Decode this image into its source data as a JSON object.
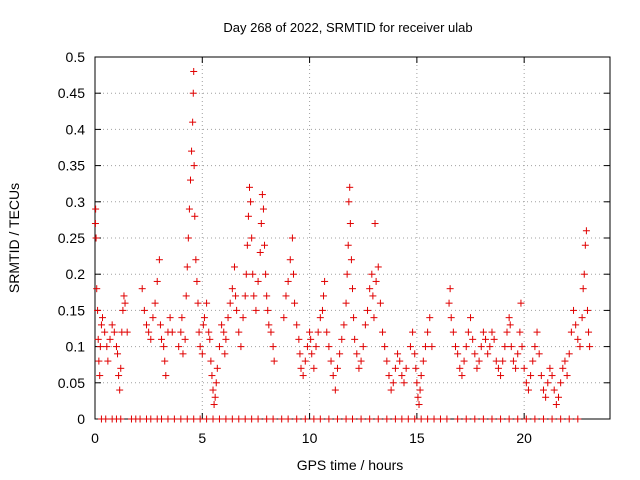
{
  "chart_data": {
    "type": "scatter",
    "title": "Day 268 of 2022, SRMTID for receiver ulab",
    "xlabel": "GPS time / hours",
    "ylabel": "SRMTID / TECUs",
    "xlim": [
      0,
      24
    ],
    "ylim": [
      0,
      0.5
    ],
    "xticks": [
      {
        "value": 0,
        "label": "0"
      },
      {
        "value": 5,
        "label": "5"
      },
      {
        "value": 10,
        "label": "10"
      },
      {
        "value": 15,
        "label": "15"
      },
      {
        "value": 20,
        "label": "20"
      }
    ],
    "yticks": [
      {
        "value": 0,
        "label": "0"
      },
      {
        "value": 0.05,
        "label": "0.05"
      },
      {
        "value": 0.1,
        "label": "0.1"
      },
      {
        "value": 0.15,
        "label": "0.15"
      },
      {
        "value": 0.2,
        "label": "0.2"
      },
      {
        "value": 0.25,
        "label": "0.25"
      },
      {
        "value": 0.3,
        "label": "0.3"
      },
      {
        "value": 0.35,
        "label": "0.35"
      },
      {
        "value": 0.4,
        "label": "0.4"
      },
      {
        "value": 0.45,
        "label": "0.45"
      },
      {
        "value": 0.5,
        "label": "0.5"
      }
    ],
    "grid": true,
    "marker": "+",
    "color": "#e00000",
    "series": [
      {
        "name": "SRMTID",
        "points": [
          [
            0.02,
            0.27
          ],
          [
            0.03,
            0.29
          ],
          [
            0.05,
            0.25
          ],
          [
            0.08,
            0.18
          ],
          [
            0.12,
            0.15
          ],
          [
            0.15,
            0.11
          ],
          [
            0.18,
            0.08
          ],
          [
            0.22,
            0.06
          ],
          [
            0.25,
            0.1
          ],
          [
            0.3,
            0.13
          ],
          [
            0.35,
            0.14
          ],
          [
            0.45,
            0.12
          ],
          [
            0.55,
            0.1
          ],
          [
            0.6,
            0.08
          ],
          [
            0.7,
            0.11
          ],
          [
            0.8,
            0.13
          ],
          [
            0.9,
            0.12
          ],
          [
            1.0,
            0.1
          ],
          [
            1.05,
            0.09
          ],
          [
            1.1,
            0.06
          ],
          [
            1.15,
            0.04
          ],
          [
            1.2,
            0.07
          ],
          [
            1.25,
            0.12
          ],
          [
            1.3,
            0.15
          ],
          [
            1.35,
            0.17
          ],
          [
            1.4,
            0.16
          ],
          [
            1.5,
            0.12
          ],
          [
            2.2,
            0.18
          ],
          [
            2.3,
            0.15
          ],
          [
            2.4,
            0.13
          ],
          [
            2.5,
            0.12
          ],
          [
            2.6,
            0.11
          ],
          [
            2.7,
            0.14
          ],
          [
            2.8,
            0.16
          ],
          [
            2.9,
            0.19
          ],
          [
            3.0,
            0.22
          ],
          [
            3.05,
            0.13
          ],
          [
            3.1,
            0.11
          ],
          [
            3.2,
            0.1
          ],
          [
            3.25,
            0.08
          ],
          [
            3.3,
            0.06
          ],
          [
            3.4,
            0.12
          ],
          [
            3.5,
            0.14
          ],
          [
            3.6,
            0.12
          ],
          [
            3.9,
            0.1
          ],
          [
            4.0,
            0.12
          ],
          [
            4.05,
            0.14
          ],
          [
            4.1,
            0.09
          ],
          [
            4.2,
            0.11
          ],
          [
            4.25,
            0.17
          ],
          [
            4.3,
            0.21
          ],
          [
            4.35,
            0.25
          ],
          [
            4.4,
            0.29
          ],
          [
            4.45,
            0.33
          ],
          [
            4.5,
            0.37
          ],
          [
            4.55,
            0.41
          ],
          [
            4.58,
            0.45
          ],
          [
            4.6,
            0.48
          ],
          [
            4.62,
            0.35
          ],
          [
            4.65,
            0.28
          ],
          [
            4.7,
            0.22
          ],
          [
            4.75,
            0.19
          ],
          [
            4.8,
            0.16
          ],
          [
            4.85,
            0.12
          ],
          [
            4.9,
            0.1
          ],
          [
            5.0,
            0.09
          ],
          [
            5.05,
            0.13
          ],
          [
            5.1,
            0.14
          ],
          [
            5.2,
            0.16
          ],
          [
            5.3,
            0.12
          ],
          [
            5.35,
            0.11
          ],
          [
            5.4,
            0.08
          ],
          [
            5.45,
            0.06
          ],
          [
            5.5,
            0.04
          ],
          [
            5.55,
            0.02
          ],
          [
            5.6,
            0.03
          ],
          [
            5.65,
            0.05
          ],
          [
            5.7,
            0.07
          ],
          [
            5.8,
            0.1
          ],
          [
            5.9,
            0.13
          ],
          [
            6.0,
            0.12
          ],
          [
            6.05,
            0.09
          ],
          [
            6.1,
            0.11
          ],
          [
            6.2,
            0.14
          ],
          [
            6.3,
            0.16
          ],
          [
            6.4,
            0.18
          ],
          [
            6.5,
            0.21
          ],
          [
            6.55,
            0.17
          ],
          [
            6.6,
            0.15
          ],
          [
            6.7,
            0.12
          ],
          [
            6.8,
            0.1
          ],
          [
            6.9,
            0.14
          ],
          [
            7.0,
            0.17
          ],
          [
            7.05,
            0.2
          ],
          [
            7.1,
            0.24
          ],
          [
            7.15,
            0.28
          ],
          [
            7.2,
            0.32
          ],
          [
            7.25,
            0.3
          ],
          [
            7.3,
            0.25
          ],
          [
            7.35,
            0.2
          ],
          [
            7.4,
            0.17
          ],
          [
            7.5,
            0.15
          ],
          [
            7.6,
            0.19
          ],
          [
            7.7,
            0.23
          ],
          [
            7.75,
            0.27
          ],
          [
            7.8,
            0.31
          ],
          [
            7.85,
            0.29
          ],
          [
            7.9,
            0.24
          ],
          [
            7.95,
            0.2
          ],
          [
            8.0,
            0.17
          ],
          [
            8.05,
            0.15
          ],
          [
            8.1,
            0.13
          ],
          [
            8.2,
            0.12
          ],
          [
            8.3,
            0.1
          ],
          [
            8.35,
            0.08
          ],
          [
            8.8,
            0.14
          ],
          [
            8.9,
            0.17
          ],
          [
            9.0,
            0.19
          ],
          [
            9.1,
            0.22
          ],
          [
            9.2,
            0.25
          ],
          [
            9.25,
            0.2
          ],
          [
            9.3,
            0.16
          ],
          [
            9.4,
            0.13
          ],
          [
            9.5,
            0.11
          ],
          [
            9.55,
            0.09
          ],
          [
            9.6,
            0.07
          ],
          [
            9.7,
            0.06
          ],
          [
            9.8,
            0.08
          ],
          [
            9.9,
            0.1
          ],
          [
            10.0,
            0.12
          ],
          [
            10.05,
            0.11
          ],
          [
            10.1,
            0.09
          ],
          [
            10.2,
            0.07
          ],
          [
            10.3,
            0.1
          ],
          [
            10.4,
            0.12
          ],
          [
            10.5,
            0.14
          ],
          [
            10.6,
            0.15
          ],
          [
            10.65,
            0.17
          ],
          [
            10.7,
            0.19
          ],
          [
            10.8,
            0.12
          ],
          [
            10.9,
            0.1
          ],
          [
            11.0,
            0.08
          ],
          [
            11.1,
            0.06
          ],
          [
            11.2,
            0.04
          ],
          [
            11.3,
            0.07
          ],
          [
            11.4,
            0.09
          ],
          [
            11.5,
            0.11
          ],
          [
            11.6,
            0.13
          ],
          [
            11.7,
            0.16
          ],
          [
            11.75,
            0.2
          ],
          [
            11.8,
            0.24
          ],
          [
            11.83,
            0.3
          ],
          [
            11.87,
            0.32
          ],
          [
            11.9,
            0.27
          ],
          [
            11.95,
            0.22
          ],
          [
            12.0,
            0.18
          ],
          [
            12.05,
            0.14
          ],
          [
            12.1,
            0.11
          ],
          [
            12.2,
            0.09
          ],
          [
            12.3,
            0.07
          ],
          [
            12.4,
            0.08
          ],
          [
            12.5,
            0.1
          ],
          [
            12.6,
            0.13
          ],
          [
            12.7,
            0.15
          ],
          [
            12.8,
            0.18
          ],
          [
            12.9,
            0.2
          ],
          [
            12.95,
            0.17
          ],
          [
            13.0,
            0.14
          ],
          [
            13.05,
            0.27
          ],
          [
            13.1,
            0.19
          ],
          [
            13.2,
            0.21
          ],
          [
            13.3,
            0.16
          ],
          [
            13.4,
            0.12
          ],
          [
            13.5,
            0.1
          ],
          [
            13.6,
            0.08
          ],
          [
            13.7,
            0.06
          ],
          [
            13.8,
            0.04
          ],
          [
            13.9,
            0.05
          ],
          [
            14.0,
            0.07
          ],
          [
            14.1,
            0.09
          ],
          [
            14.2,
            0.08
          ],
          [
            14.3,
            0.06
          ],
          [
            14.4,
            0.05
          ],
          [
            14.5,
            0.07
          ],
          [
            14.7,
            0.1
          ],
          [
            14.8,
            0.12
          ],
          [
            14.9,
            0.09
          ],
          [
            14.95,
            0.07
          ],
          [
            15.0,
            0.05
          ],
          [
            15.05,
            0.03
          ],
          [
            15.1,
            0.02
          ],
          [
            15.15,
            0.04
          ],
          [
            15.2,
            0.06
          ],
          [
            15.3,
            0.08
          ],
          [
            15.4,
            0.1
          ],
          [
            15.5,
            0.12
          ],
          [
            15.6,
            0.14
          ],
          [
            15.7,
            0.1
          ],
          [
            16.5,
            0.16
          ],
          [
            16.55,
            0.18
          ],
          [
            16.6,
            0.14
          ],
          [
            16.7,
            0.12
          ],
          [
            16.8,
            0.1
          ],
          [
            16.9,
            0.09
          ],
          [
            17.0,
            0.07
          ],
          [
            17.1,
            0.06
          ],
          [
            17.2,
            0.08
          ],
          [
            17.3,
            0.1
          ],
          [
            17.4,
            0.12
          ],
          [
            17.5,
            0.14
          ],
          [
            17.6,
            0.11
          ],
          [
            17.7,
            0.09
          ],
          [
            17.8,
            0.07
          ],
          [
            17.9,
            0.08
          ],
          [
            18.0,
            0.1
          ],
          [
            18.1,
            0.12
          ],
          [
            18.2,
            0.11
          ],
          [
            18.3,
            0.09
          ],
          [
            18.4,
            0.1
          ],
          [
            18.5,
            0.12
          ],
          [
            18.6,
            0.11
          ],
          [
            18.7,
            0.08
          ],
          [
            18.8,
            0.07
          ],
          [
            18.9,
            0.06
          ],
          [
            19.0,
            0.08
          ],
          [
            19.1,
            0.1
          ],
          [
            19.2,
            0.12
          ],
          [
            19.3,
            0.14
          ],
          [
            19.35,
            0.13
          ],
          [
            19.4,
            0.1
          ],
          [
            19.5,
            0.08
          ],
          [
            19.6,
            0.07
          ],
          [
            19.7,
            0.09
          ],
          [
            19.8,
            0.12
          ],
          [
            19.85,
            0.16
          ],
          [
            19.9,
            0.1
          ],
          [
            20.0,
            0.07
          ],
          [
            20.1,
            0.05
          ],
          [
            20.2,
            0.04
          ],
          [
            20.3,
            0.06
          ],
          [
            20.4,
            0.08
          ],
          [
            20.5,
            0.1
          ],
          [
            20.6,
            0.12
          ],
          [
            20.7,
            0.09
          ],
          [
            20.8,
            0.06
          ],
          [
            20.9,
            0.04
          ],
          [
            21.0,
            0.03
          ],
          [
            21.1,
            0.05
          ],
          [
            21.2,
            0.07
          ],
          [
            21.3,
            0.06
          ],
          [
            21.4,
            0.04
          ],
          [
            21.5,
            0.02
          ],
          [
            21.6,
            0.03
          ],
          [
            21.7,
            0.05
          ],
          [
            21.8,
            0.07
          ],
          [
            21.9,
            0.08
          ],
          [
            22.0,
            0.06
          ],
          [
            22.1,
            0.09
          ],
          [
            22.2,
            0.12
          ],
          [
            22.3,
            0.15
          ],
          [
            22.4,
            0.13
          ],
          [
            22.5,
            0.11
          ],
          [
            22.6,
            0.1
          ],
          [
            22.7,
            0.14
          ],
          [
            22.75,
            0.18
          ],
          [
            22.8,
            0.2
          ],
          [
            22.85,
            0.24
          ],
          [
            22.9,
            0.26
          ],
          [
            22.95,
            0.15
          ],
          [
            23.0,
            0.12
          ],
          [
            23.05,
            0.1
          ]
        ]
      }
    ],
    "zero_markers": [
      0.3,
      0.5,
      0.8,
      1.0,
      1.2,
      1.7,
      1.9,
      2.1,
      2.4,
      2.6,
      2.9,
      3.1,
      3.4,
      3.7,
      4.0,
      4.3,
      4.6,
      4.9,
      5.2,
      5.5,
      5.8,
      6.1,
      6.4,
      6.7,
      7.0,
      7.3,
      7.6,
      8.0,
      8.3,
      8.7,
      9.0,
      9.4,
      9.8,
      10.2,
      10.5,
      10.9,
      11.3,
      11.7,
      12.0,
      12.4,
      12.8,
      13.2,
      13.6,
      14.0,
      14.3,
      14.6,
      14.9,
      15.2,
      15.5,
      15.8,
      16.1,
      16.4,
      16.9,
      17.3,
      17.7,
      18.1,
      18.5,
      18.9,
      19.3,
      19.7,
      20.1,
      20.5,
      20.9,
      21.3,
      21.7,
      22.1,
      22.5
    ]
  }
}
